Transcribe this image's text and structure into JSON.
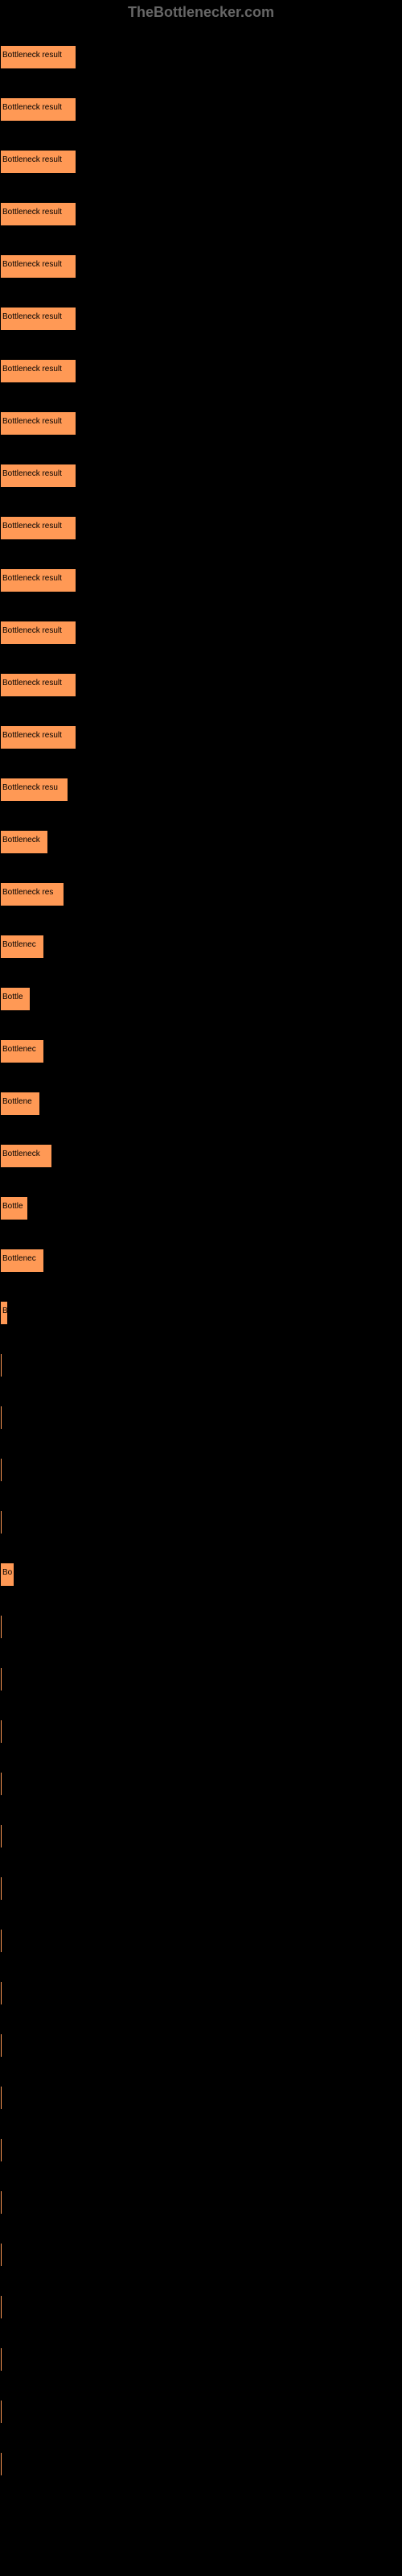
{
  "header": {
    "title": "TheBottlenecker.com"
  },
  "chart": {
    "type": "bar",
    "background_color": "#000000",
    "bar_color": "#ff9955",
    "bar_border_color": "#000000",
    "label_color": "#000000",
    "label_fontsize": 10,
    "max_width": 95,
    "bars": [
      {
        "label": "Bottleneck result",
        "width": 95
      },
      {
        "label": "Bottleneck result",
        "width": 95
      },
      {
        "label": "Bottleneck result",
        "width": 95
      },
      {
        "label": "Bottleneck result",
        "width": 95
      },
      {
        "label": "Bottleneck result",
        "width": 95
      },
      {
        "label": "Bottleneck result",
        "width": 95
      },
      {
        "label": "Bottleneck result",
        "width": 95
      },
      {
        "label": "Bottleneck result",
        "width": 95
      },
      {
        "label": "Bottleneck result",
        "width": 95
      },
      {
        "label": "Bottleneck result",
        "width": 95
      },
      {
        "label": "Bottleneck result",
        "width": 95
      },
      {
        "label": "Bottleneck result",
        "width": 95
      },
      {
        "label": "Bottleneck result",
        "width": 95
      },
      {
        "label": "Bottleneck result",
        "width": 95
      },
      {
        "label": "Bottleneck resu",
        "width": 85
      },
      {
        "label": "Bottleneck",
        "width": 60
      },
      {
        "label": "Bottleneck res",
        "width": 80
      },
      {
        "label": "Bottlenec",
        "width": 55
      },
      {
        "label": "Bottle",
        "width": 38
      },
      {
        "label": "Bottlenec",
        "width": 55
      },
      {
        "label": "Bottlene",
        "width": 50
      },
      {
        "label": "Bottleneck",
        "width": 65
      },
      {
        "label": "Bottle",
        "width": 35
      },
      {
        "label": "Bottlenec",
        "width": 55
      },
      {
        "label": "B",
        "width": 10
      },
      {
        "label": "",
        "width": 3
      },
      {
        "label": "",
        "width": 3
      },
      {
        "label": "",
        "width": 3
      },
      {
        "label": "",
        "width": 3
      },
      {
        "label": "Bo",
        "width": 18
      },
      {
        "label": "",
        "width": 3
      },
      {
        "label": "",
        "width": 3
      },
      {
        "label": "",
        "width": 3
      },
      {
        "label": "",
        "width": 3
      },
      {
        "label": "",
        "width": 3
      },
      {
        "label": "",
        "width": 3
      },
      {
        "label": "",
        "width": 3
      },
      {
        "label": "",
        "width": 3
      },
      {
        "label": "",
        "width": 3
      },
      {
        "label": "",
        "width": 3
      },
      {
        "label": "",
        "width": 3
      },
      {
        "label": "",
        "width": 3
      },
      {
        "label": "",
        "width": 3
      },
      {
        "label": "",
        "width": 3
      },
      {
        "label": "",
        "width": 3
      },
      {
        "label": "",
        "width": 3
      },
      {
        "label": "",
        "width": 3
      }
    ]
  }
}
